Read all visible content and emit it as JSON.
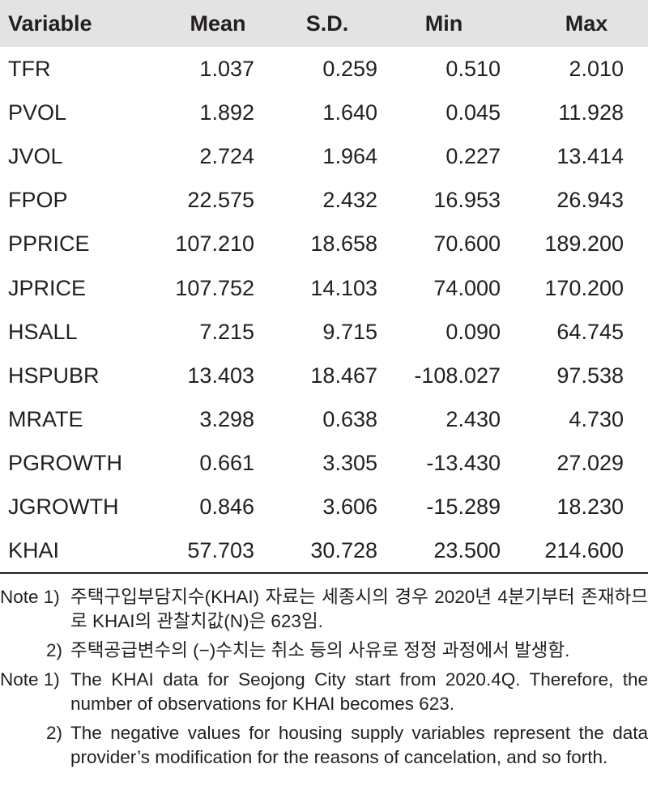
{
  "table": {
    "headers": {
      "variable": "Variable",
      "mean": "Mean",
      "sd": "S.D.",
      "min": "Min",
      "max": "Max"
    },
    "rows": [
      {
        "variable": "TFR",
        "mean": "1.037",
        "sd": "0.259",
        "min": "0.510",
        "max": "2.010"
      },
      {
        "variable": "PVOL",
        "mean": "1.892",
        "sd": "1.640",
        "min": "0.045",
        "max": "11.928"
      },
      {
        "variable": "JVOL",
        "mean": "2.724",
        "sd": "1.964",
        "min": "0.227",
        "max": "13.414"
      },
      {
        "variable": "FPOP",
        "mean": "22.575",
        "sd": "2.432",
        "min": "16.953",
        "max": "26.943"
      },
      {
        "variable": "PPRICE",
        "mean": "107.210",
        "sd": "18.658",
        "min": "70.600",
        "max": "189.200"
      },
      {
        "variable": "JPRICE",
        "mean": "107.752",
        "sd": "14.103",
        "min": "74.000",
        "max": "170.200"
      },
      {
        "variable": "HSALL",
        "mean": "7.215",
        "sd": "9.715",
        "min": "0.090",
        "max": "64.745"
      },
      {
        "variable": "HSPUBR",
        "mean": "13.403",
        "sd": "18.467",
        "min": "-108.027",
        "max": "97.538"
      },
      {
        "variable": "MRATE",
        "mean": "3.298",
        "sd": "0.638",
        "min": "2.430",
        "max": "4.730"
      },
      {
        "variable": "PGROWTH",
        "mean": "0.661",
        "sd": "3.305",
        "min": "-13.430",
        "max": "27.029"
      },
      {
        "variable": "JGROWTH",
        "mean": "0.846",
        "sd": "3.606",
        "min": "-15.289",
        "max": "18.230"
      },
      {
        "variable": "KHAI",
        "mean": "57.703",
        "sd": "30.728",
        "min": "23.500",
        "max": "214.600"
      }
    ]
  },
  "notes": {
    "korean": {
      "note1_tag": "Note 1)",
      "note1_text": "주택구입부담지수(KHAI) 자료는 세종시의 경우 2020년 4분기부터 존재하므로 KHAI의 관찰치값(N)은 623임.",
      "note2_tag": "2)",
      "note2_text": "주택공급변수의 (−)수치는 취소 등의 사유로 정정 과정에서 발생함."
    },
    "english": {
      "note1_tag": "Note 1)",
      "note1_text": "The KHAI data for Seojong City start from 2020.4Q. Therefore, the number of observations for KHAI becomes 623.",
      "note2_tag": "2)",
      "note2_text": "The negative values for housing supply variables represent the data provider’s modification for the reasons of cancelation, and so forth."
    }
  }
}
